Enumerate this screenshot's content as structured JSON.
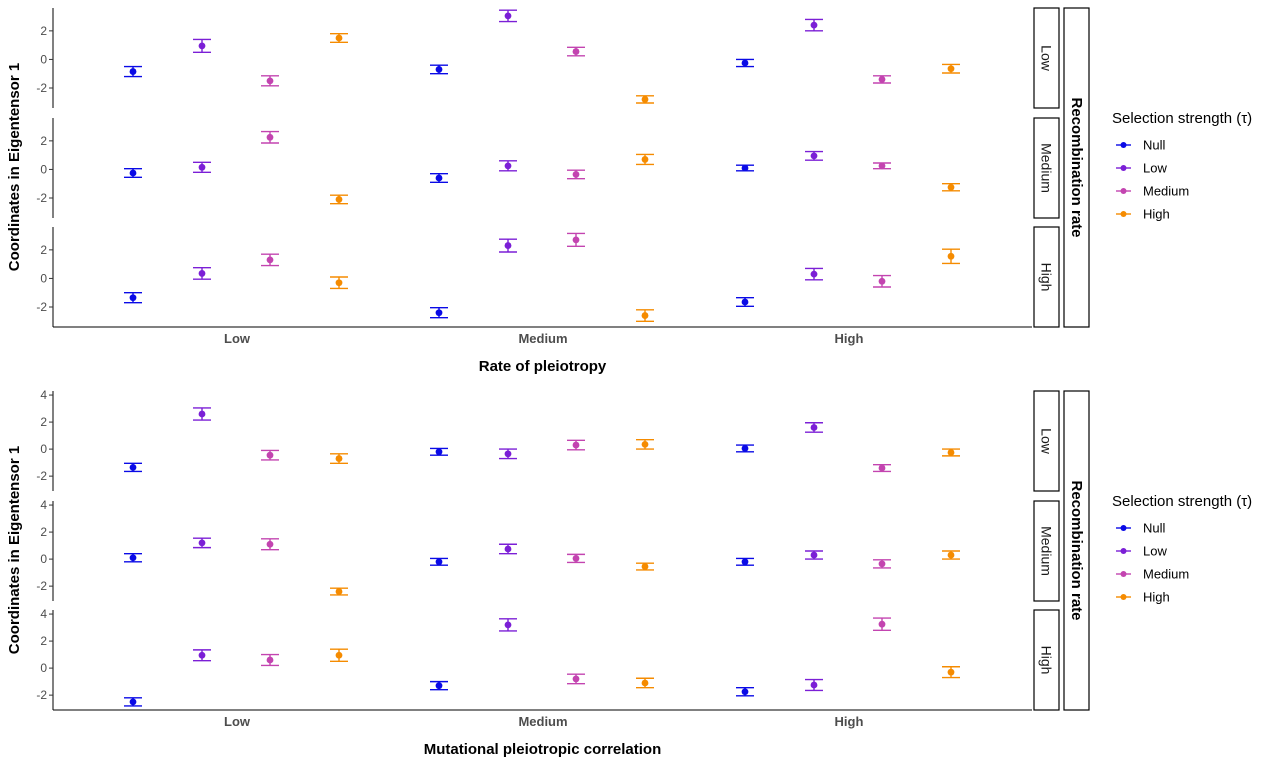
{
  "chart_data": [
    {
      "type": "scatter",
      "error_bars": true,
      "xlabel": "Rate of pleiotropy",
      "ylabel": "Coordinates in Eigentensor 1",
      "categories": [
        "Low",
        "Medium",
        "High"
      ],
      "facet_title": "Recombination rate",
      "facets": [
        "Low",
        "Medium",
        "High"
      ],
      "ylim": [
        -3.4,
        3.6
      ],
      "yticks": [
        -2,
        0,
        2
      ],
      "series_names": [
        "Null",
        "Low",
        "Medium",
        "High"
      ],
      "series_colors": [
        "#0a0ae6",
        "#7b1fd6",
        "#c344b0",
        "#f58b00"
      ],
      "panels": [
        {
          "facet": "Low",
          "values": [
            [
              -0.85,
              -0.7,
              -0.25
            ],
            [
              0.95,
              3.05,
              2.4
            ],
            [
              -1.5,
              0.55,
              -1.4
            ],
            [
              1.5,
              -2.8,
              -0.65
            ]
          ],
          "errors": [
            [
              0.35,
              0.3,
              0.25
            ],
            [
              0.45,
              0.4,
              0.4
            ],
            [
              0.35,
              0.3,
              0.25
            ],
            [
              0.3,
              0.25,
              0.3
            ]
          ]
        },
        {
          "facet": "Medium",
          "values": [
            [
              -0.25,
              -0.6,
              0.1
            ],
            [
              0.15,
              0.25,
              0.95
            ],
            [
              2.25,
              -0.35,
              0.25
            ],
            [
              -2.1,
              0.7,
              -1.25
            ]
          ],
          "errors": [
            [
              0.3,
              0.3,
              0.2
            ],
            [
              0.35,
              0.35,
              0.3
            ],
            [
              0.4,
              0.3,
              0.2
            ],
            [
              0.3,
              0.35,
              0.25
            ]
          ]
        },
        {
          "facet": "High",
          "values": [
            [
              -1.35,
              -2.4,
              -1.65
            ],
            [
              0.35,
              2.3,
              0.3
            ],
            [
              1.3,
              2.7,
              -0.2
            ],
            [
              -0.3,
              -2.6,
              1.55
            ]
          ],
          "errors": [
            [
              0.35,
              0.35,
              0.3
            ],
            [
              0.4,
              0.45,
              0.4
            ],
            [
              0.4,
              0.45,
              0.4
            ],
            [
              0.4,
              0.4,
              0.5
            ]
          ]
        }
      ],
      "legend": {
        "title": "Selection strength (τ)",
        "position": "right"
      }
    },
    {
      "type": "scatter",
      "error_bars": true,
      "xlabel": "Mutational pleiotropic correlation",
      "ylabel": "Coordinates in Eigentensor 1",
      "categories": [
        "Low",
        "Medium",
        "High"
      ],
      "facet_title": "Recombination rate",
      "facets": [
        "Low",
        "Medium",
        "High"
      ],
      "ylim": [
        -3.1,
        4.3
      ],
      "yticks": [
        -2,
        0,
        2,
        4
      ],
      "series_names": [
        "Null",
        "Low",
        "Medium",
        "High"
      ],
      "series_colors": [
        "#0a0ae6",
        "#7b1fd6",
        "#c344b0",
        "#f58b00"
      ],
      "panels": [
        {
          "facet": "Low",
          "values": [
            [
              -1.35,
              -0.2,
              0.05
            ],
            [
              2.6,
              -0.35,
              1.6
            ],
            [
              -0.45,
              0.3,
              -1.4
            ],
            [
              -0.7,
              0.35,
              -0.25
            ]
          ],
          "errors": [
            [
              0.3,
              0.25,
              0.25
            ],
            [
              0.45,
              0.35,
              0.35
            ],
            [
              0.35,
              0.35,
              0.25
            ],
            [
              0.35,
              0.35,
              0.25
            ]
          ]
        },
        {
          "facet": "Medium",
          "values": [
            [
              0.1,
              -0.2,
              -0.2
            ],
            [
              1.2,
              0.75,
              0.3
            ],
            [
              1.1,
              0.05,
              -0.35
            ],
            [
              -2.4,
              -0.55,
              0.3
            ]
          ],
          "errors": [
            [
              0.3,
              0.25,
              0.25
            ],
            [
              0.35,
              0.35,
              0.3
            ],
            [
              0.4,
              0.3,
              0.3
            ],
            [
              0.25,
              0.25,
              0.3
            ]
          ]
        },
        {
          "facet": "High",
          "values": [
            [
              -2.5,
              -1.3,
              -1.75
            ],
            [
              0.95,
              3.2,
              -1.25
            ],
            [
              0.6,
              -0.8,
              3.25
            ],
            [
              0.95,
              -1.1,
              -0.3
            ]
          ],
          "errors": [
            [
              0.3,
              0.3,
              0.3
            ],
            [
              0.4,
              0.45,
              0.4
            ],
            [
              0.4,
              0.35,
              0.45
            ],
            [
              0.45,
              0.35,
              0.4
            ]
          ]
        }
      ],
      "legend": {
        "title": "Selection strength (τ)",
        "position": "right"
      }
    }
  ]
}
